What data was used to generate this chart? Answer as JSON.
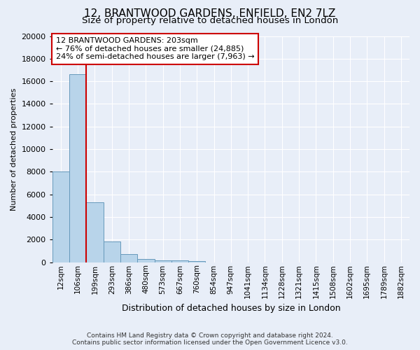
{
  "title1": "12, BRANTWOOD GARDENS, ENFIELD, EN2 7LZ",
  "title2": "Size of property relative to detached houses in London",
  "xlabel": "Distribution of detached houses by size in London",
  "ylabel": "Number of detached properties",
  "annotation_line1": "12 BRANTWOOD GARDENS: 203sqm",
  "annotation_line2": "← 76% of detached houses are smaller (24,885)",
  "annotation_line3": "24% of semi-detached houses are larger (7,963) →",
  "footer_line1": "Contains HM Land Registry data © Crown copyright and database right 2024.",
  "footer_line2": "Contains public sector information licensed under the Open Government Licence v3.0.",
  "bar_labels": [
    "12sqm",
    "106sqm",
    "199sqm",
    "293sqm",
    "386sqm",
    "480sqm",
    "573sqm",
    "667sqm",
    "760sqm",
    "854sqm",
    "947sqm",
    "1041sqm",
    "1134sqm",
    "1228sqm",
    "1321sqm",
    "1415sqm",
    "1508sqm",
    "1602sqm",
    "1695sqm",
    "1789sqm",
    "1882sqm"
  ],
  "bar_heights": [
    8050,
    16600,
    5300,
    1850,
    700,
    310,
    185,
    155,
    130,
    0,
    0,
    0,
    0,
    0,
    0,
    0,
    0,
    0,
    0,
    0,
    0
  ],
  "bar_color": "#b8d4ea",
  "bar_edge_color": "#6699bb",
  "vline_color": "#cc0000",
  "ylim": [
    0,
    20000
  ],
  "yticks": [
    0,
    2000,
    4000,
    6000,
    8000,
    10000,
    12000,
    14000,
    16000,
    18000,
    20000
  ],
  "bg_color": "#e8eef8",
  "plot_bg_color": "#e8eef8",
  "annotation_box_bg": "#ffffff",
  "annotation_box_color": "#cc0000",
  "title_fontsize": 11,
  "subtitle_fontsize": 9.5,
  "ylabel_fontsize": 8,
  "xlabel_fontsize": 9,
  "grid_color": "#ffffff",
  "tick_label_fontsize": 7.5,
  "ytick_fontsize": 8
}
